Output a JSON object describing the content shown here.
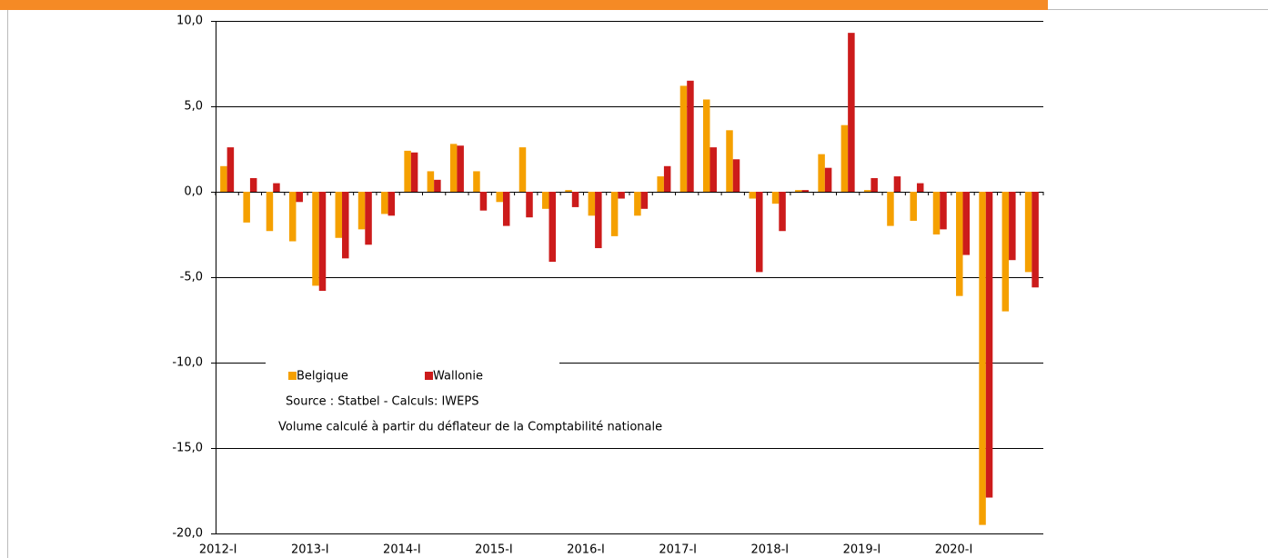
{
  "chart_data": {
    "type": "bar",
    "categories": [
      "2012-I",
      null,
      null,
      null,
      "2013-I",
      null,
      null,
      null,
      "2014-I",
      null,
      null,
      null,
      "2015-I",
      null,
      null,
      null,
      "2016-I",
      null,
      null,
      null,
      "2017-I",
      null,
      null,
      null,
      "2018-I",
      null,
      null,
      null,
      "2019-I",
      null,
      null,
      null,
      "2020-I",
      null,
      null,
      null
    ],
    "series": [
      {
        "name": "Belgique",
        "color": "#f5a000",
        "values": [
          1.5,
          -1.8,
          -2.3,
          -2.9,
          -5.5,
          -2.7,
          -2.2,
          -1.3,
          2.4,
          1.2,
          2.8,
          1.2,
          -0.6,
          2.6,
          -1.0,
          0.1,
          -1.4,
          -2.6,
          -1.4,
          0.9,
          6.2,
          5.4,
          3.6,
          -0.4,
          -0.7,
          0.1,
          2.2,
          3.9,
          0.1,
          -2.0,
          -1.7,
          -2.5,
          -6.1,
          -19.5,
          -7.0,
          -4.7
        ]
      },
      {
        "name": "Wallonie",
        "color": "#cc1b1b",
        "values": [
          2.6,
          0.8,
          0.5,
          -0.6,
          -5.8,
          -3.9,
          -3.1,
          -1.4,
          2.3,
          0.7,
          2.7,
          -1.1,
          -2.0,
          -1.5,
          -4.1,
          -0.9,
          -3.3,
          -0.4,
          -1.0,
          1.5,
          6.5,
          2.6,
          1.9,
          -4.7,
          -2.3,
          0.1,
          1.4,
          9.3,
          0.8,
          0.9,
          0.5,
          -2.2,
          -3.7,
          -17.9,
          -4.0,
          -5.6
        ]
      }
    ],
    "ylim": [
      -20,
      10
    ],
    "yticks": [
      {
        "value": -20,
        "label": "-20,0"
      },
      {
        "value": -15,
        "label": "-15,0"
      },
      {
        "value": -10,
        "label": "-10,0"
      },
      {
        "value": -5,
        "label": "-5,0"
      },
      {
        "value": 0,
        "label": "0,0"
      },
      {
        "value": 5,
        "label": "5,0"
      },
      {
        "value": 10,
        "label": "10,0"
      }
    ],
    "grid": true,
    "annotations": [
      "Source : Statbel - Calculs: IWEPS",
      "Volume calculé à partir du déflateur de la Comptabilité nationale"
    ]
  }
}
